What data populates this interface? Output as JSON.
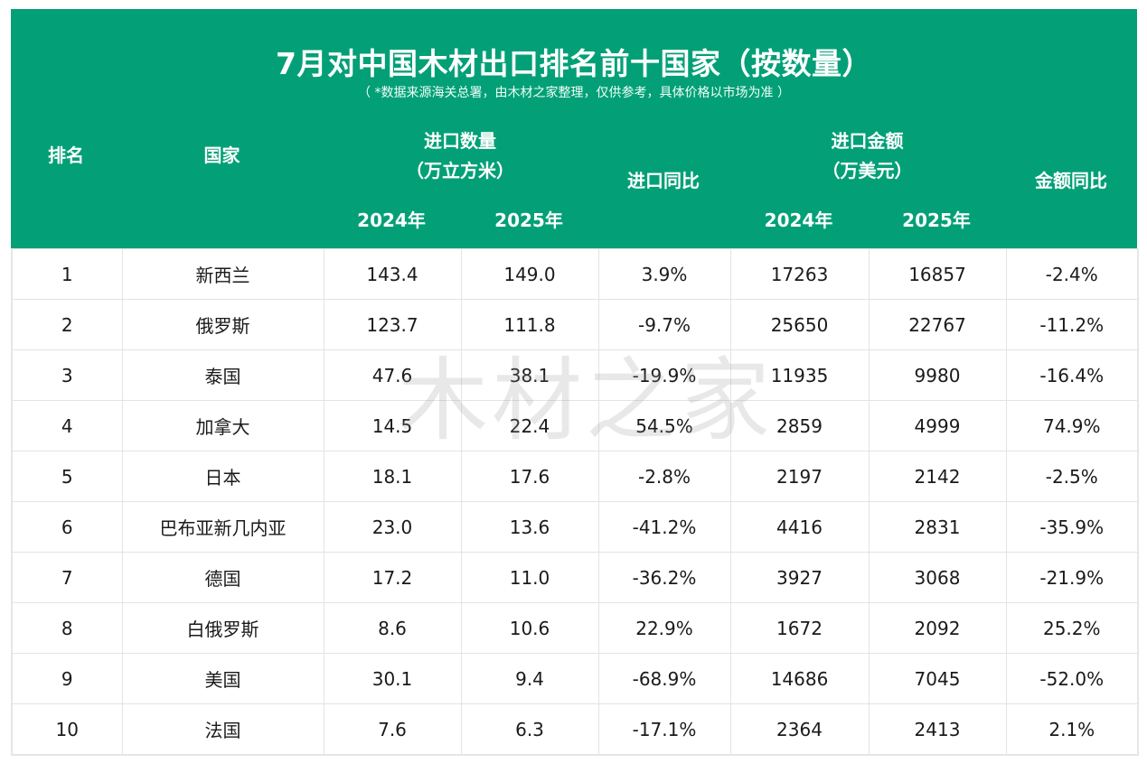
{
  "header": {
    "title": "7月对中国木材出口排名前十国家（按数量）",
    "subtitle": "（ *数据来源海关总署，由木材之家整理，仅供参考，具体价格以市场为准 ）",
    "background_color": "#03A077"
  },
  "columns": {
    "rank": "排名",
    "country": "国家",
    "volume_group": "进口数量",
    "volume_unit": "（万立方米）",
    "volume_2024": "2024年",
    "volume_2025": "2025年",
    "volume_yoy": "进口同比",
    "value_group": "进口金额",
    "value_unit": "（万美元）",
    "value_2024": "2024年",
    "value_2025": "2025年",
    "value_yoy": "金额同比"
  },
  "colors": {
    "positive": "#E0101C",
    "negative": "#1D9A70"
  },
  "watermark": "木材之家",
  "rows": [
    {
      "rank": "1",
      "country": "新西兰",
      "vol_2024": "143.4",
      "vol_2025": "149.0",
      "vol_yoy": "3.9%",
      "val_2024": "17263",
      "val_2025": "16857",
      "val_yoy": "-2.4%"
    },
    {
      "rank": "2",
      "country": "俄罗斯",
      "vol_2024": "123.7",
      "vol_2025": "111.8",
      "vol_yoy": "-9.7%",
      "val_2024": "25650",
      "val_2025": "22767",
      "val_yoy": "-11.2%"
    },
    {
      "rank": "3",
      "country": "泰国",
      "vol_2024": "47.6",
      "vol_2025": "38.1",
      "vol_yoy": "-19.9%",
      "val_2024": "11935",
      "val_2025": "9980",
      "val_yoy": "-16.4%"
    },
    {
      "rank": "4",
      "country": "加拿大",
      "vol_2024": "14.5",
      "vol_2025": "22.4",
      "vol_yoy": "54.5%",
      "val_2024": "2859",
      "val_2025": "4999",
      "val_yoy": "74.9%"
    },
    {
      "rank": "5",
      "country": "日本",
      "vol_2024": "18.1",
      "vol_2025": "17.6",
      "vol_yoy": "-2.8%",
      "val_2024": "2197",
      "val_2025": "2142",
      "val_yoy": "-2.5%"
    },
    {
      "rank": "6",
      "country": "巴布亚新几内亚",
      "vol_2024": "23.0",
      "vol_2025": "13.6",
      "vol_yoy": "-41.2%",
      "val_2024": "4416",
      "val_2025": "2831",
      "val_yoy": "-35.9%"
    },
    {
      "rank": "7",
      "country": "德国",
      "vol_2024": "17.2",
      "vol_2025": "11.0",
      "vol_yoy": "-36.2%",
      "val_2024": "3927",
      "val_2025": "3068",
      "val_yoy": "-21.9%"
    },
    {
      "rank": "8",
      "country": "白俄罗斯",
      "vol_2024": "8.6",
      "vol_2025": "10.6",
      "vol_yoy": "22.9%",
      "val_2024": "1672",
      "val_2025": "2092",
      "val_yoy": "25.2%"
    },
    {
      "rank": "9",
      "country": "美国",
      "vol_2024": "30.1",
      "vol_2025": "9.4",
      "vol_yoy": "-68.9%",
      "val_2024": "14686",
      "val_2025": "7045",
      "val_yoy": "-52.0%"
    },
    {
      "rank": "10",
      "country": "法国",
      "vol_2024": "7.6",
      "vol_2025": "6.3",
      "vol_yoy": "-17.1%",
      "val_2024": "2364",
      "val_2025": "2413",
      "val_yoy": "2.1%"
    }
  ]
}
